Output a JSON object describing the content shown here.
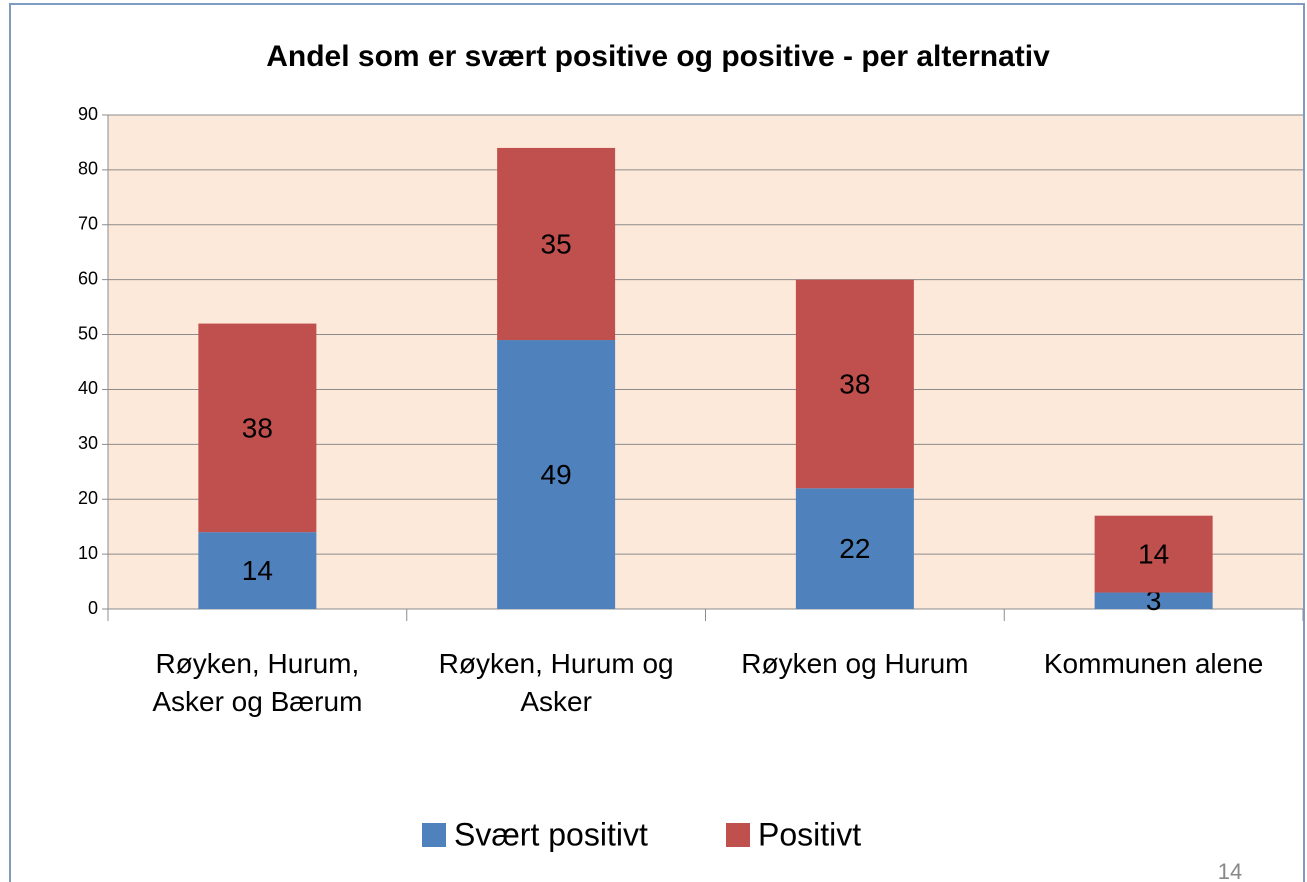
{
  "chart_data": {
    "type": "stacked_bar",
    "title": "Andel som er svært positive og positive - per alternativ",
    "categories": [
      "Røyken, Hurum, Asker og Bærum",
      "Røyken, Hurum og Asker",
      "Røyken og Hurum",
      "Kommunen alene"
    ],
    "series": [
      {
        "name": "Svært positivt",
        "color": "#4f81bd",
        "values": [
          14,
          49,
          22,
          3
        ]
      },
      {
        "name": "Positivt",
        "color": "#c0504d",
        "values": [
          38,
          35,
          38,
          14
        ]
      }
    ],
    "ylim": [
      0,
      90
    ],
    "yticks": [
      0,
      10,
      20,
      30,
      40,
      50,
      60,
      70,
      80,
      90
    ],
    "grid": true,
    "plot_background": "#fde9d9",
    "legend": "bottom"
  },
  "page_number": "14"
}
